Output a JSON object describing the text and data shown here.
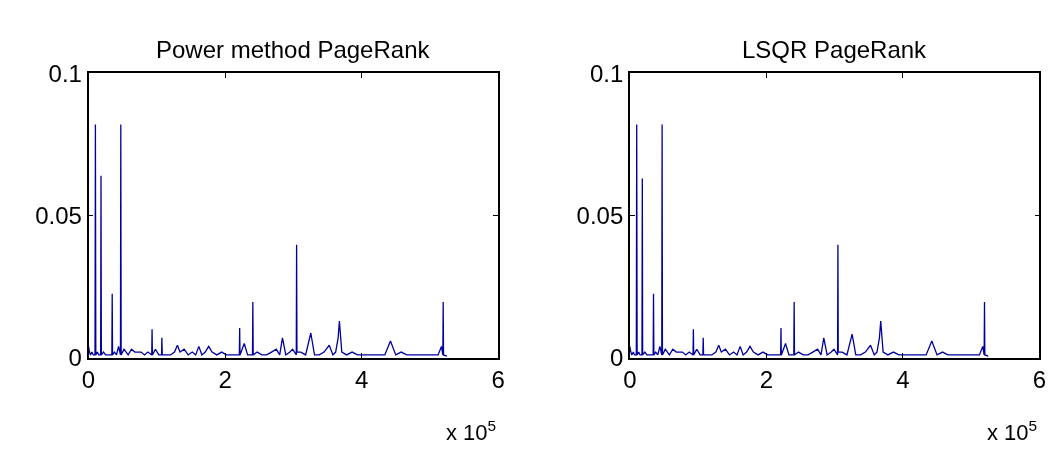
{
  "chart_data": [
    {
      "type": "line",
      "title": "Power method PageRank",
      "annotations": [
        "x 10$^{5}$"
      ],
      "x": [
        0,
        0.015,
        0.03,
        0.05,
        0.07,
        0.095,
        0.101,
        0.107,
        0.13,
        0.15,
        0.178,
        0.183,
        0.188,
        0.22,
        0.25,
        0.28,
        0.31,
        0.342,
        0.347,
        0.352,
        0.38,
        0.41,
        0.44,
        0.468,
        0.473,
        0.478,
        0.52,
        0.58,
        0.63,
        0.68,
        0.72,
        0.77,
        0.82,
        0.87,
        0.926,
        0.931,
        0.936,
        0.98,
        1.03,
        1.07,
        1.075,
        1.08,
        1.14,
        1.2,
        1.26,
        1.302,
        1.34,
        1.4,
        1.46,
        1.52,
        1.57,
        1.616,
        1.66,
        1.71,
        1.76,
        1.81,
        1.88,
        1.95,
        2.02,
        2.09,
        2.15,
        2.209,
        2.214,
        2.219,
        2.281,
        2.33,
        2.402,
        2.407,
        2.412,
        2.47,
        2.54,
        2.61,
        2.68,
        2.75,
        2.8,
        2.841,
        2.89,
        2.95,
        2.99,
        3.043,
        3.048,
        3.053,
        3.11,
        3.18,
        3.256,
        3.31,
        3.38,
        3.45,
        3.526,
        3.58,
        3.62,
        3.656,
        3.675,
        3.71,
        3.78,
        3.86,
        3.94,
        4.02,
        4.1,
        4.18,
        4.26,
        4.34,
        4.423,
        4.5,
        4.58,
        4.66,
        4.74,
        4.82,
        4.9,
        4.98,
        5.06,
        5.12,
        5.17,
        5.19,
        5.195,
        5.2,
        5.25
      ],
      "series": [
        {
          "color": "#0000a0",
          "values": [
            0.004,
            0.002,
            0.001,
            0.002,
            0.001,
            0.001,
            0.082,
            0.001,
            0.002,
            0.001,
            0.001,
            0.064,
            0.001,
            0.002,
            0.001,
            0.001,
            0.001,
            0.001,
            0.0225,
            0.001,
            0.002,
            0.001,
            0.004,
            0.001,
            0.082,
            0.001,
            0.003,
            0.001,
            0.003,
            0.002,
            0.002,
            0.002,
            0.001,
            0.002,
            0.001,
            0.01,
            0.001,
            0.003,
            0.001,
            0.001,
            0.007,
            0.001,
            0.001,
            0.001,
            0.002,
            0.0044,
            0.002,
            0.003,
            0.001,
            0.002,
            0.001,
            0.004,
            0.001,
            0.002,
            0.004,
            0.002,
            0.001,
            0.002,
            0.001,
            0.001,
            0.001,
            0.001,
            0.0105,
            0.001,
            0.005,
            0.001,
            0.001,
            0.0196,
            0.001,
            0.002,
            0.001,
            0.001,
            0.002,
            0.003,
            0.001,
            0.007,
            0.001,
            0.002,
            0.003,
            0.001,
            0.0397,
            0.002,
            0.002,
            0.001,
            0.0087,
            0.001,
            0.001,
            0.002,
            0.0044,
            0.001,
            0.002,
            0.007,
            0.0129,
            0.002,
            0.001,
            0.002,
            0.001,
            0.001,
            0.001,
            0.001,
            0.001,
            0.001,
            0.0059,
            0.001,
            0.002,
            0.001,
            0.001,
            0.001,
            0.001,
            0.001,
            0.001,
            0.001,
            0.004,
            0.001,
            0.0196,
            0.001,
            0.0006
          ]
        }
      ],
      "xlim": [
        0,
        6
      ],
      "xticks": [
        0,
        2,
        4,
        6
      ],
      "ylim": [
        0,
        0.1
      ],
      "yticks": [
        0,
        0.05,
        0.1
      ]
    },
    {
      "type": "line",
      "title": "LSQR PageRank",
      "annotations": [
        "x 10$^{5}$"
      ],
      "x": [
        0,
        0.015,
        0.03,
        0.05,
        0.07,
        0.095,
        0.101,
        0.107,
        0.13,
        0.15,
        0.178,
        0.183,
        0.188,
        0.22,
        0.25,
        0.28,
        0.31,
        0.342,
        0.347,
        0.352,
        0.38,
        0.41,
        0.44,
        0.468,
        0.473,
        0.478,
        0.52,
        0.58,
        0.63,
        0.68,
        0.72,
        0.77,
        0.82,
        0.87,
        0.926,
        0.931,
        0.936,
        0.98,
        1.03,
        1.07,
        1.075,
        1.08,
        1.14,
        1.2,
        1.26,
        1.302,
        1.34,
        1.4,
        1.46,
        1.52,
        1.57,
        1.616,
        1.66,
        1.71,
        1.76,
        1.81,
        1.88,
        1.95,
        2.02,
        2.09,
        2.15,
        2.209,
        2.214,
        2.219,
        2.281,
        2.33,
        2.402,
        2.407,
        2.412,
        2.47,
        2.54,
        2.61,
        2.68,
        2.75,
        2.8,
        2.841,
        2.89,
        2.95,
        2.99,
        3.043,
        3.048,
        3.053,
        3.11,
        3.18,
        3.256,
        3.31,
        3.38,
        3.45,
        3.526,
        3.58,
        3.62,
        3.656,
        3.675,
        3.71,
        3.78,
        3.86,
        3.94,
        4.02,
        4.1,
        4.18,
        4.26,
        4.34,
        4.423,
        4.5,
        4.58,
        4.66,
        4.74,
        4.82,
        4.9,
        4.98,
        5.06,
        5.12,
        5.17,
        5.19,
        5.195,
        5.2,
        5.25
      ],
      "series": [
        {
          "color": "#0000a0",
          "values": [
            0.004,
            0.002,
            0.001,
            0.002,
            0.001,
            0.001,
            0.082,
            0.001,
            0.002,
            0.001,
            0.001,
            0.063,
            0.001,
            0.002,
            0.001,
            0.001,
            0.001,
            0.001,
            0.0225,
            0.001,
            0.002,
            0.001,
            0.004,
            0.001,
            0.082,
            0.001,
            0.003,
            0.001,
            0.003,
            0.002,
            0.002,
            0.002,
            0.001,
            0.002,
            0.001,
            0.01,
            0.001,
            0.003,
            0.001,
            0.001,
            0.007,
            0.001,
            0.001,
            0.001,
            0.002,
            0.0044,
            0.002,
            0.003,
            0.001,
            0.002,
            0.001,
            0.004,
            0.001,
            0.002,
            0.004,
            0.002,
            0.001,
            0.002,
            0.001,
            0.001,
            0.001,
            0.001,
            0.0105,
            0.001,
            0.005,
            0.001,
            0.001,
            0.0196,
            0.001,
            0.002,
            0.001,
            0.001,
            0.002,
            0.003,
            0.001,
            0.007,
            0.001,
            0.002,
            0.003,
            0.001,
            0.0397,
            0.002,
            0.002,
            0.001,
            0.0083,
            0.001,
            0.001,
            0.002,
            0.0044,
            0.001,
            0.002,
            0.007,
            0.0129,
            0.002,
            0.001,
            0.002,
            0.001,
            0.001,
            0.001,
            0.001,
            0.001,
            0.001,
            0.0059,
            0.001,
            0.002,
            0.001,
            0.001,
            0.001,
            0.001,
            0.001,
            0.001,
            0.001,
            0.004,
            0.001,
            0.0196,
            0.001,
            0.0006
          ]
        }
      ],
      "xlim": [
        0,
        6
      ],
      "xticks": [
        0,
        2,
        4,
        6
      ],
      "ylim": [
        0,
        0.1
      ],
      "yticks": [
        0,
        0.05,
        0.1
      ]
    }
  ]
}
